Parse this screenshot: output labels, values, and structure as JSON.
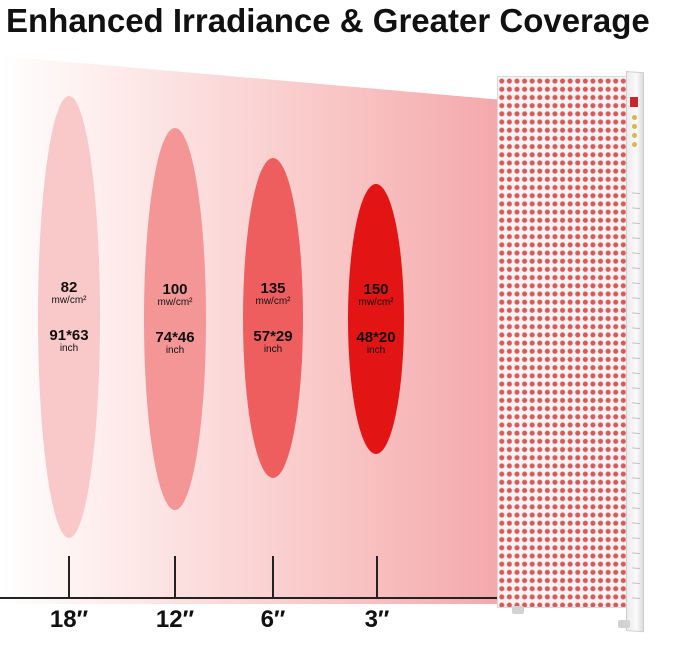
{
  "title": "Enhanced Irradiance & Greater Coverage",
  "colors": {
    "ellipse_18": "#f9c9c9",
    "ellipse_12": "#f59696",
    "ellipse_6": "#ef5e5f",
    "ellipse_3": "#e31414",
    "accent": "#e31414"
  },
  "zones": [
    {
      "irradiance": "82",
      "unit": "mw/cm²",
      "coverage": "91*63",
      "coverage_unit": "inch",
      "distance": "18″"
    },
    {
      "irradiance": "100",
      "unit": "mw/cm²",
      "coverage": "74*46",
      "coverage_unit": "inch",
      "distance": "12″"
    },
    {
      "irradiance": "135",
      "unit": "mw/cm²",
      "coverage": "57*29",
      "coverage_unit": "inch",
      "distance": "6″"
    },
    {
      "irradiance": "150",
      "unit": "mw/cm²",
      "coverage": "48*20",
      "coverage_unit": "inch",
      "distance": "3″"
    }
  ],
  "device": {
    "icon": "red-light-therapy-panel-icon"
  }
}
